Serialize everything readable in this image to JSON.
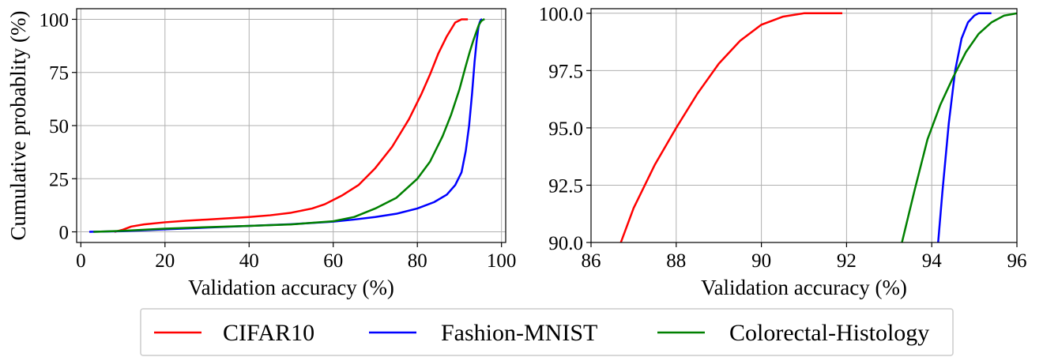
{
  "chart_data": [
    {
      "type": "line",
      "xlabel": "Validation accuracy (%)",
      "ylabel": "Cumulative probablity (%)",
      "xlim": [
        -1,
        101
      ],
      "ylim": [
        -5,
        105
      ],
      "xticks": [
        0,
        20,
        40,
        60,
        80,
        100
      ],
      "yticks": [
        0,
        25,
        50,
        75,
        100
      ],
      "xtick_labels": [
        "0",
        "20",
        "40",
        "60",
        "80",
        "100"
      ],
      "ytick_labels": [
        "0",
        "25",
        "50",
        "75",
        "100"
      ],
      "grid": true,
      "series": [
        {
          "name": "CIFAR10",
          "color": "#ff0000",
          "x": [
            8,
            10,
            12,
            15,
            20,
            25,
            30,
            35,
            40,
            45,
            50,
            55,
            58,
            62,
            66,
            70,
            74,
            78,
            81,
            83,
            85,
            87,
            89,
            90.5,
            92
          ],
          "y": [
            0,
            1,
            2.5,
            3.5,
            4.5,
            5.2,
            5.8,
            6.4,
            7,
            7.8,
            9,
            11,
            13,
            17,
            22,
            30,
            40,
            53,
            65,
            74,
            84,
            92,
            98.5,
            100,
            100
          ]
        },
        {
          "name": "Fashion-MNIST",
          "color": "#0000ff",
          "x": [
            2,
            10,
            20,
            30,
            40,
            50,
            60,
            65,
            70,
            75,
            80,
            84,
            87,
            89,
            90.5,
            91.5,
            92.3,
            93,
            93.6,
            94.1,
            94.5,
            94.8,
            95.1,
            95.4
          ],
          "y": [
            0,
            0.3,
            1.2,
            2,
            2.8,
            3.6,
            4.8,
            5.8,
            7,
            8.5,
            11,
            14,
            17.5,
            22,
            28,
            38,
            50,
            65,
            80,
            90,
            96,
            98.5,
            99.8,
            100
          ]
        },
        {
          "name": "Colorectal-Histology",
          "color": "#008000",
          "x": [
            3,
            10,
            20,
            30,
            40,
            50,
            60,
            65,
            70,
            75,
            80,
            83,
            86,
            88,
            90,
            91.5,
            92.5,
            93.3,
            94,
            94.6,
            95.2,
            95.7,
            96
          ],
          "y": [
            0,
            0.5,
            1.5,
            2.2,
            2.8,
            3.5,
            5,
            7,
            11,
            16,
            25,
            33,
            45,
            55,
            67,
            78,
            85,
            90,
            94,
            97.3,
            99.2,
            99.9,
            100
          ]
        }
      ]
    },
    {
      "type": "line",
      "xlabel": "Validation accuracy (%)",
      "ylabel": "",
      "xlim": [
        86,
        96
      ],
      "ylim": [
        90,
        100.2
      ],
      "xticks": [
        86,
        88,
        90,
        92,
        94,
        96
      ],
      "yticks": [
        90,
        92.5,
        95,
        97.5,
        100
      ],
      "xtick_labels": [
        "86",
        "88",
        "90",
        "92",
        "94",
        "96"
      ],
      "ytick_labels": [
        "90.0",
        "92.5",
        "95.0",
        "97.5",
        "100.0"
      ],
      "grid": true,
      "series": [
        {
          "name": "CIFAR10",
          "color": "#ff0000",
          "x": [
            86.7,
            87,
            87.5,
            88,
            88.5,
            89,
            89.5,
            90,
            90.5,
            91,
            91.5,
            91.9
          ],
          "y": [
            90,
            91.5,
            93.4,
            95,
            96.5,
            97.8,
            98.8,
            99.5,
            99.85,
            100,
            100,
            100
          ]
        },
        {
          "name": "Fashion-MNIST",
          "color": "#0000ff",
          "x": [
            94.15,
            94.25,
            94.4,
            94.55,
            94.7,
            94.85,
            95,
            95.1,
            95.2,
            95.4
          ],
          "y": [
            90,
            92.2,
            95.2,
            97.5,
            98.9,
            99.6,
            99.9,
            100,
            100,
            100
          ]
        },
        {
          "name": "Colorectal-Histology",
          "color": "#008000",
          "x": [
            93.3,
            93.6,
            93.9,
            94.2,
            94.5,
            94.8,
            95.1,
            95.4,
            95.7,
            96
          ],
          "y": [
            90,
            92.3,
            94.5,
            96,
            97.2,
            98.3,
            99.1,
            99.6,
            99.9,
            100
          ]
        }
      ]
    }
  ],
  "legend": {
    "placement": "bottom-center",
    "items": [
      {
        "label": "CIFAR10",
        "color": "#ff0000"
      },
      {
        "label": "Fashion-MNIST",
        "color": "#0000ff"
      },
      {
        "label": "Colorectal-Histology",
        "color": "#008000"
      }
    ]
  }
}
